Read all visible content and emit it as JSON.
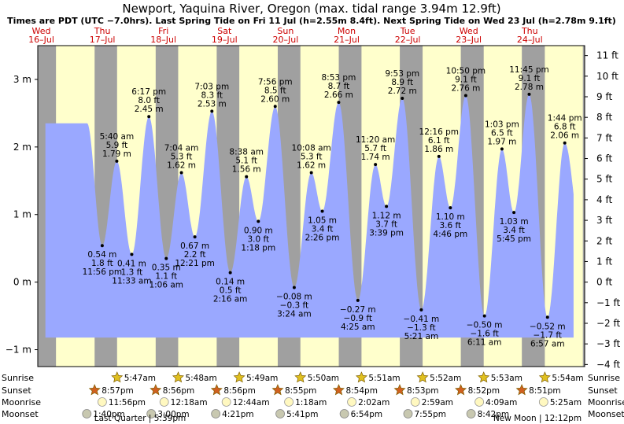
{
  "title": "Newport, Yaquina River, Oregon (max. tidal range 3.94m 12.9ft)",
  "subtitle": "Times are PDT (UTC −7.0hrs). Last Spring Tide on Fri 11 Jul (h=2.55m 8.4ft). Next Spring Tide on Wed 23 Jul (h=2.78m 9.1ft)",
  "colors": {
    "day": "#ffffcc",
    "night": "#a0a0a0",
    "water": "#9aa8ff",
    "day_label": "#cc0000",
    "frame": "#000000"
  },
  "days": [
    {
      "dow": "Wed",
      "date": "16–Jul"
    },
    {
      "dow": "Thu",
      "date": "17–Jul"
    },
    {
      "dow": "Fri",
      "date": "18–Jul"
    },
    {
      "dow": "Sat",
      "date": "19–Jul"
    },
    {
      "dow": "Sun",
      "date": "20–Jul"
    },
    {
      "dow": "Mon",
      "date": "21–Jul"
    },
    {
      "dow": "Tue",
      "date": "22–Jul"
    },
    {
      "dow": "Wed",
      "date": "23–Jul"
    },
    {
      "dow": "Thu",
      "date": "24–Jul"
    }
  ],
  "row_labels": {
    "sunrise": "Sunrise",
    "sunset": "Sunset",
    "moonrise": "Moonrise",
    "moonset": "Moonset"
  },
  "moon_notes": [
    {
      "text": "Last Quarter | 5:39pm",
      "day_index": 1,
      "hour": 17.65
    },
    {
      "text": "New Moon | 12:12pm",
      "day_index": 8,
      "hour": 12.2
    }
  ],
  "chart_data": {
    "type": "area",
    "time_start": "Wed 16-Jul 00:00 PDT",
    "ylabel_left": "m",
    "ylabel_right": "ft",
    "ylim_m": [
      -1.25,
      3.5
    ],
    "y_ticks_m": [
      {
        "value": -1,
        "label": "−1 m"
      },
      {
        "value": 0,
        "label": "0 m"
      },
      {
        "value": 1,
        "label": "1 m"
      },
      {
        "value": 2,
        "label": "2 m"
      },
      {
        "value": 3,
        "label": "3 m"
      }
    ],
    "y_ticks_ft": [
      "−4 ft",
      "−3 ft",
      "−2 ft",
      "−1 ft",
      "0 ft",
      "1 ft",
      "2 ft",
      "3 ft",
      "4 ft",
      "5 ft",
      "6 ft",
      "7 ft",
      "8 ft",
      "9 ft",
      "10 ft",
      "11 ft"
    ],
    "y_ticks_ft_values": [
      -4,
      -3,
      -2,
      -1,
      0,
      1,
      2,
      3,
      4,
      5,
      6,
      7,
      8,
      9,
      10,
      11
    ],
    "start_level_m": 2.35,
    "tides": [
      {
        "day": 0,
        "hour": 23.93,
        "h": 0.54,
        "ft": "1.8 ft",
        "m_label": "0.54 m",
        "time": "11:56 pm",
        "type": "low"
      },
      {
        "day": 1,
        "hour": 5.67,
        "h": 1.79,
        "ft": "5.9 ft",
        "m_label": "1.79 m",
        "time": "5:40 am",
        "type": "high"
      },
      {
        "day": 1,
        "hour": 11.55,
        "h": 0.41,
        "ft": "1.3 ft",
        "m_label": "0.41 m",
        "time": "11:33 am",
        "type": "low"
      },
      {
        "day": 1,
        "hour": 18.28,
        "h": 2.45,
        "ft": "8.0 ft",
        "m_label": "2.45 m",
        "time": "6:17 pm",
        "type": "high"
      },
      {
        "day": 2,
        "hour": 1.1,
        "h": 0.35,
        "ft": "1.1 ft",
        "m_label": "0.35 m",
        "time": "1:06 am",
        "type": "low"
      },
      {
        "day": 2,
        "hour": 7.07,
        "h": 1.62,
        "ft": "5.3 ft",
        "m_label": "1.62 m",
        "time": "7:04 am",
        "type": "high"
      },
      {
        "day": 2,
        "hour": 12.35,
        "h": 0.67,
        "ft": "2.2 ft",
        "m_label": "0.67 m",
        "time": "12:21 pm",
        "type": "low"
      },
      {
        "day": 2,
        "hour": 19.05,
        "h": 2.53,
        "ft": "8.3 ft",
        "m_label": "2.53 m",
        "time": "7:03 pm",
        "type": "high"
      },
      {
        "day": 3,
        "hour": 2.27,
        "h": 0.14,
        "ft": "0.5 ft",
        "m_label": "0.14 m",
        "time": "2:16 am",
        "type": "low"
      },
      {
        "day": 3,
        "hour": 8.63,
        "h": 1.56,
        "ft": "5.1 ft",
        "m_label": "1.56 m",
        "time": "8:38 am",
        "type": "high"
      },
      {
        "day": 3,
        "hour": 13.3,
        "h": 0.9,
        "ft": "3.0 ft",
        "m_label": "0.90 m",
        "time": "1:18 pm",
        "type": "low"
      },
      {
        "day": 3,
        "hour": 19.93,
        "h": 2.6,
        "ft": "8.5 ft",
        "m_label": "2.60 m",
        "time": "7:56 pm",
        "type": "high"
      },
      {
        "day": 4,
        "hour": 3.4,
        "h": -0.08,
        "ft": "−0.3 ft",
        "m_label": "−0.08 m",
        "time": "3:24 am",
        "type": "low"
      },
      {
        "day": 4,
        "hour": 10.13,
        "h": 1.62,
        "ft": "5.3 ft",
        "m_label": "1.62 m",
        "time": "10:08 am",
        "type": "high"
      },
      {
        "day": 4,
        "hour": 14.43,
        "h": 1.05,
        "ft": "3.4 ft",
        "m_label": "1.05 m",
        "time": "2:26 pm",
        "type": "low"
      },
      {
        "day": 4,
        "hour": 20.88,
        "h": 2.66,
        "ft": "8.7 ft",
        "m_label": "2.66 m",
        "time": "8:53 pm",
        "type": "high"
      },
      {
        "day": 5,
        "hour": 4.42,
        "h": -0.27,
        "ft": "−0.9 ft",
        "m_label": "−0.27 m",
        "time": "4:25 am",
        "type": "low"
      },
      {
        "day": 5,
        "hour": 11.33,
        "h": 1.74,
        "ft": "5.7 ft",
        "m_label": "1.74 m",
        "time": "11:20 am",
        "type": "high"
      },
      {
        "day": 5,
        "hour": 15.65,
        "h": 1.12,
        "ft": "3.7 ft",
        "m_label": "1.12 m",
        "time": "3:39 pm",
        "type": "low"
      },
      {
        "day": 5,
        "hour": 21.88,
        "h": 2.72,
        "ft": "8.9 ft",
        "m_label": "2.72 m",
        "time": "9:53 pm",
        "type": "high"
      },
      {
        "day": 6,
        "hour": 5.35,
        "h": -0.41,
        "ft": "−1.3 ft",
        "m_label": "−0.41 m",
        "time": "5:21 am",
        "type": "low"
      },
      {
        "day": 6,
        "hour": 12.27,
        "h": 1.86,
        "ft": "6.1 ft",
        "m_label": "1.86 m",
        "time": "12:16 pm",
        "type": "high"
      },
      {
        "day": 6,
        "hour": 16.77,
        "h": 1.1,
        "ft": "3.6 ft",
        "m_label": "1.10 m",
        "time": "4:46 pm",
        "type": "low"
      },
      {
        "day": 6,
        "hour": 22.83,
        "h": 2.76,
        "ft": "9.1 ft",
        "m_label": "2.76 m",
        "time": "10:50 pm",
        "type": "high"
      },
      {
        "day": 7,
        "hour": 6.18,
        "h": -0.5,
        "ft": "−1.6 ft",
        "m_label": "−0.50 m",
        "time": "6:11 am",
        "type": "low"
      },
      {
        "day": 7,
        "hour": 13.05,
        "h": 1.97,
        "ft": "6.5 ft",
        "m_label": "1.97 m",
        "time": "1:03 pm",
        "type": "high"
      },
      {
        "day": 7,
        "hour": 17.75,
        "h": 1.03,
        "ft": "3.4 ft",
        "m_label": "1.03 m",
        "time": "5:45 pm",
        "type": "low"
      },
      {
        "day": 7,
        "hour": 23.75,
        "h": 2.78,
        "ft": "9.1 ft",
        "m_label": "2.78 m",
        "time": "11:45 pm",
        "type": "high"
      },
      {
        "day": 8,
        "hour": 6.95,
        "h": -0.52,
        "ft": "−1.7 ft",
        "m_label": "−0.52 m",
        "time": "6:57 am",
        "type": "low"
      },
      {
        "day": 8,
        "hour": 13.73,
        "h": 2.06,
        "ft": "6.8 ft",
        "m_label": "2.06 m",
        "time": "1:44 pm",
        "type": "high"
      }
    ],
    "end_level_m": 1.3,
    "sun": [
      {
        "day": 1,
        "sunrise": "5:47am",
        "rise_h": 5.78,
        "sunset": "8:57pm",
        "set_h": 20.95
      },
      {
        "day": 2,
        "sunrise": "5:48am",
        "rise_h": 5.8,
        "sunset": "8:56pm",
        "set_h": 20.93
      },
      {
        "day": 3,
        "sunrise": "5:49am",
        "rise_h": 5.82,
        "sunset": "8:56pm",
        "set_h": 20.93
      },
      {
        "day": 4,
        "sunrise": "5:50am",
        "rise_h": 5.83,
        "sunset": "8:55pm",
        "set_h": 20.92
      },
      {
        "day": 5,
        "sunrise": "5:51am",
        "rise_h": 5.85,
        "sunset": "8:54pm",
        "set_h": 20.9
      },
      {
        "day": 6,
        "sunrise": "5:52am",
        "rise_h": 5.87,
        "sunset": "8:53pm",
        "set_h": 20.88
      },
      {
        "day": 7,
        "sunrise": "5:53am",
        "rise_h": 5.88,
        "sunset": "8:52pm",
        "set_h": 20.87
      },
      {
        "day": 8,
        "sunrise": "5:54am",
        "rise_h": 5.9,
        "sunset": "8:51pm",
        "set_h": 20.85
      }
    ],
    "night_before_start": {
      "sunset_h_prev": 20.95,
      "sunrise_day0": 5.77
    },
    "moonrise": [
      {
        "day": 0,
        "hour": 23.93,
        "text": "11:56pm"
      },
      {
        "day": 2,
        "hour": 0.3,
        "text": "12:18am"
      },
      {
        "day": 3,
        "hour": 0.73,
        "text": "12:44am"
      },
      {
        "day": 4,
        "hour": 1.3,
        "text": "1:18am"
      },
      {
        "day": 5,
        "hour": 2.03,
        "text": "2:02am"
      },
      {
        "day": 6,
        "hour": 2.98,
        "text": "2:59am"
      },
      {
        "day": 7,
        "hour": 4.15,
        "text": "4:09am"
      },
      {
        "day": 8,
        "hour": 5.42,
        "text": "5:25am"
      }
    ],
    "moonset": [
      {
        "day": 1,
        "hour": 13.67,
        "text": "1:40pm"
      },
      {
        "day": 2,
        "hour": 15.0,
        "text": "3:00pm"
      },
      {
        "day": 3,
        "hour": 16.35,
        "text": "4:21pm"
      },
      {
        "day": 4,
        "hour": 17.68,
        "text": "5:41pm"
      },
      {
        "day": 5,
        "hour": 18.9,
        "text": "6:54pm"
      },
      {
        "day": 6,
        "hour": 19.92,
        "text": "7:55pm"
      },
      {
        "day": 7,
        "hour": 20.7,
        "text": "8:42pm"
      }
    ]
  }
}
